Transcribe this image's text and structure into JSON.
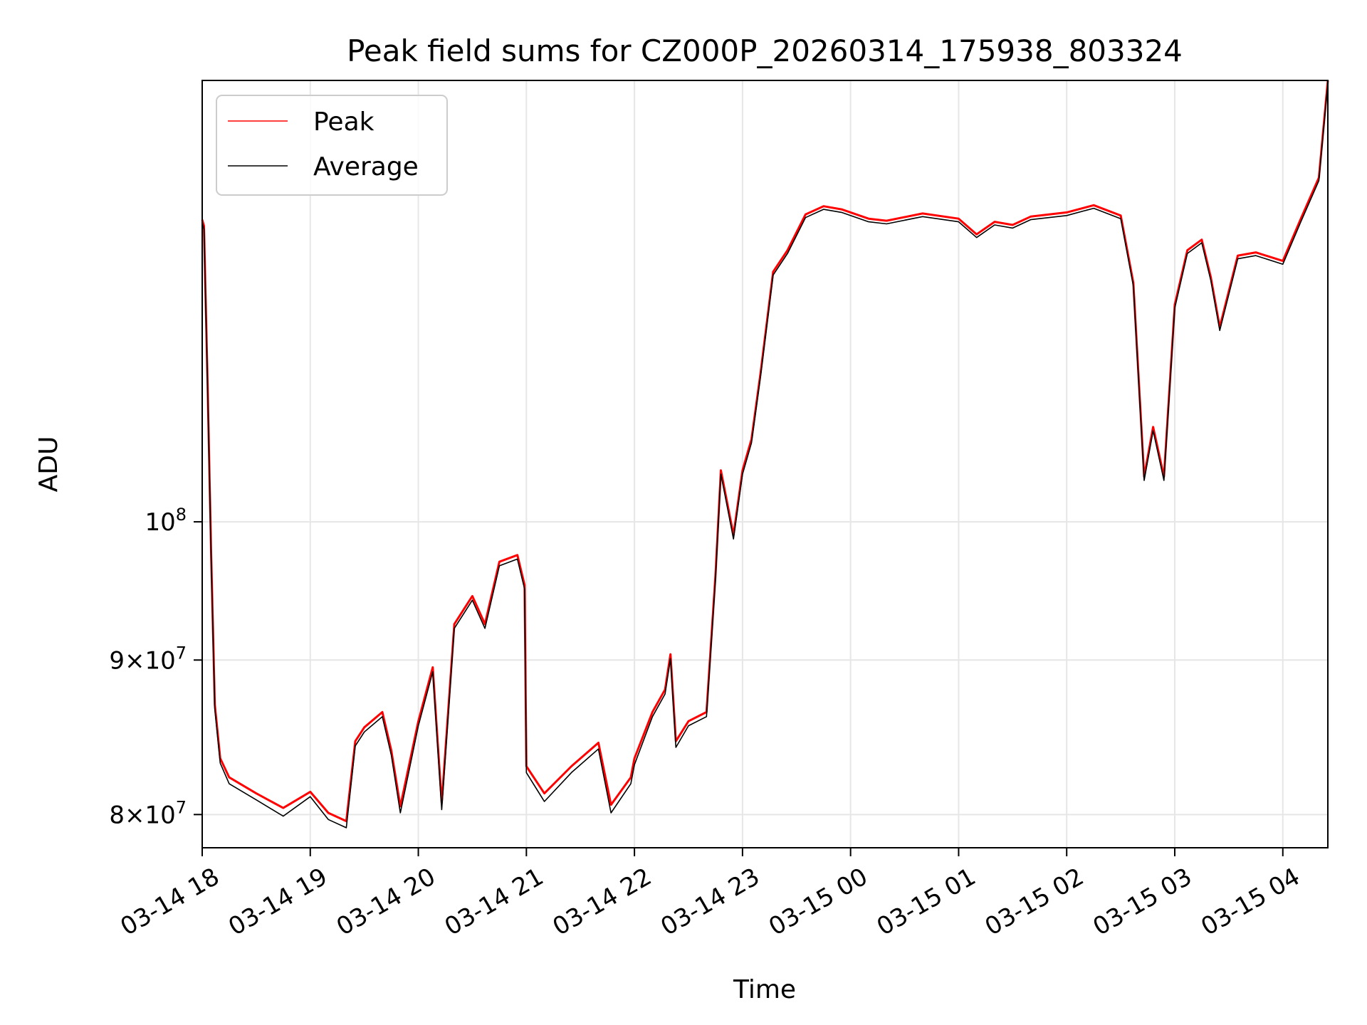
{
  "chart_data": {
    "type": "line",
    "title": "Peak field sums for CZ000P_20260314_175938_803324",
    "xlabel": "Time",
    "ylabel": "ADU",
    "yscale": "log",
    "xlim": [
      "2026-03-14T18:00",
      "2026-03-15T04:25"
    ],
    "ylim": [
      78000000,
      140000000
    ],
    "grid": true,
    "legend_position": "top-left",
    "x_ticks": [
      "03-14 18",
      "03-14 19",
      "03-14 20",
      "03-14 21",
      "03-14 22",
      "03-14 23",
      "03-15 00",
      "03-15 01",
      "03-15 02",
      "03-15 03",
      "03-15 04"
    ],
    "x_tick_times": [
      "2026-03-14T18:00",
      "2026-03-14T19:00",
      "2026-03-14T20:00",
      "2026-03-14T21:00",
      "2026-03-14T22:00",
      "2026-03-14T23:00",
      "2026-03-15T00:00",
      "2026-03-15T01:00",
      "2026-03-15T02:00",
      "2026-03-15T03:00",
      "2026-03-15T04:00"
    ],
    "y_ticks": [
      {
        "value": 80000000,
        "mantissa": "8",
        "base": "10",
        "exp": "7"
      },
      {
        "value": 90000000,
        "mantissa": "9",
        "base": "10",
        "exp": "7"
      },
      {
        "value": 100000000,
        "mantissa": "",
        "base": "10",
        "exp": "8"
      }
    ],
    "series": [
      {
        "name": "Peak",
        "color": "#ff0000",
        "x": [
          "2026-03-14T18:00",
          "2026-03-14T18:01",
          "2026-03-14T18:03",
          "2026-03-14T18:05",
          "2026-03-14T18:07",
          "2026-03-14T18:10",
          "2026-03-14T18:15",
          "2026-03-14T18:30",
          "2026-03-14T18:45",
          "2026-03-14T19:00",
          "2026-03-14T19:10",
          "2026-03-14T19:20",
          "2026-03-14T19:25",
          "2026-03-14T19:30",
          "2026-03-14T19:40",
          "2026-03-14T19:45",
          "2026-03-14T19:50",
          "2026-03-14T20:00",
          "2026-03-14T20:08",
          "2026-03-14T20:13",
          "2026-03-14T20:20",
          "2026-03-14T20:30",
          "2026-03-14T20:37",
          "2026-03-14T20:45",
          "2026-03-14T20:55",
          "2026-03-14T20:59",
          "2026-03-14T21:00",
          "2026-03-14T21:10",
          "2026-03-14T21:25",
          "2026-03-14T21:40",
          "2026-03-14T21:47",
          "2026-03-14T21:58",
          "2026-03-14T22:00",
          "2026-03-14T22:10",
          "2026-03-14T22:17",
          "2026-03-14T22:20",
          "2026-03-14T22:23",
          "2026-03-14T22:30",
          "2026-03-14T22:40",
          "2026-03-14T22:45",
          "2026-03-14T22:48",
          "2026-03-14T22:55",
          "2026-03-14T23:00",
          "2026-03-14T23:05",
          "2026-03-14T23:10",
          "2026-03-14T23:17",
          "2026-03-14T23:25",
          "2026-03-14T23:35",
          "2026-03-14T23:45",
          "2026-03-14T23:55",
          "2026-03-15T00:10",
          "2026-03-15T00:20",
          "2026-03-15T00:40",
          "2026-03-15T01:00",
          "2026-03-15T01:10",
          "2026-03-15T01:20",
          "2026-03-15T01:30",
          "2026-03-15T01:40",
          "2026-03-15T02:00",
          "2026-03-15T02:15",
          "2026-03-15T02:30",
          "2026-03-15T02:37",
          "2026-03-15T02:43",
          "2026-03-15T02:48",
          "2026-03-15T02:54",
          "2026-03-15T03:00",
          "2026-03-15T03:07",
          "2026-03-15T03:15",
          "2026-03-15T03:20",
          "2026-03-15T03:25",
          "2026-03-15T03:35",
          "2026-03-15T03:45",
          "2026-03-15T04:00",
          "2026-03-15T04:10",
          "2026-03-15T04:20",
          "2026-03-15T04:25"
        ],
        "values": [
          125900000,
          125300000,
          111000000,
          97500000,
          87000000,
          83500000,
          82300000,
          81300000,
          80400000,
          81400000,
          80100000,
          79600000,
          84600000,
          85500000,
          86500000,
          84000000,
          80500000,
          85900000,
          89500000,
          80700000,
          92500000,
          94500000,
          92500000,
          97000000,
          97500000,
          95300000,
          83000000,
          81300000,
          83000000,
          84500000,
          80600000,
          82300000,
          83500000,
          86500000,
          88000000,
          90400000,
          84600000,
          85900000,
          86500000,
          96000000,
          104000000,
          99000000,
          104000000,
          106500000,
          112000000,
          121000000,
          123000000,
          126400000,
          127200000,
          126900000,
          126000000,
          125800000,
          126500000,
          126000000,
          124500000,
          125700000,
          125400000,
          126200000,
          126600000,
          127300000,
          126300000,
          120000000,
          103500000,
          107500000,
          103500000,
          118000000,
          123000000,
          124000000,
          120500000,
          116000000,
          122500000,
          122800000,
          122000000,
          126000000,
          130000000,
          140000000
        ]
      },
      {
        "name": "Average",
        "color": "#000000",
        "x": [
          "2026-03-14T18:00",
          "2026-03-14T18:01",
          "2026-03-14T18:03",
          "2026-03-14T18:05",
          "2026-03-14T18:07",
          "2026-03-14T18:10",
          "2026-03-14T18:15",
          "2026-03-14T18:30",
          "2026-03-14T18:45",
          "2026-03-14T19:00",
          "2026-03-14T19:10",
          "2026-03-14T19:20",
          "2026-03-14T19:25",
          "2026-03-14T19:30",
          "2026-03-14T19:40",
          "2026-03-14T19:45",
          "2026-03-14T19:50",
          "2026-03-14T20:00",
          "2026-03-14T20:08",
          "2026-03-14T20:13",
          "2026-03-14T20:20",
          "2026-03-14T20:30",
          "2026-03-14T20:37",
          "2026-03-14T20:45",
          "2026-03-14T20:55",
          "2026-03-14T20:59",
          "2026-03-14T21:00",
          "2026-03-14T21:10",
          "2026-03-14T21:25",
          "2026-03-14T21:40",
          "2026-03-14T21:47",
          "2026-03-14T21:58",
          "2026-03-14T22:00",
          "2026-03-14T22:10",
          "2026-03-14T22:17",
          "2026-03-14T22:20",
          "2026-03-14T22:23",
          "2026-03-14T22:30",
          "2026-03-14T22:40",
          "2026-03-14T22:45",
          "2026-03-14T22:48",
          "2026-03-14T22:55",
          "2026-03-14T23:00",
          "2026-03-14T23:05",
          "2026-03-14T23:10",
          "2026-03-14T23:17",
          "2026-03-14T23:25",
          "2026-03-14T23:35",
          "2026-03-14T23:45",
          "2026-03-14T23:55",
          "2026-03-15T00:10",
          "2026-03-15T00:20",
          "2026-03-15T00:40",
          "2026-03-15T01:00",
          "2026-03-15T01:10",
          "2026-03-15T01:20",
          "2026-03-15T01:30",
          "2026-03-15T01:40",
          "2026-03-15T02:00",
          "2026-03-15T02:15",
          "2026-03-15T02:30",
          "2026-03-15T02:37",
          "2026-03-15T02:43",
          "2026-03-15T02:48",
          "2026-03-15T02:54",
          "2026-03-15T03:00",
          "2026-03-15T03:07",
          "2026-03-15T03:15",
          "2026-03-15T03:20",
          "2026-03-15T03:25",
          "2026-03-15T03:35",
          "2026-03-15T03:45",
          "2026-03-15T04:00",
          "2026-03-15T04:10",
          "2026-03-15T04:20",
          "2026-03-15T04:25"
        ],
        "values": [
          125600000,
          125000000,
          110700000,
          97200000,
          86700000,
          83200000,
          81900000,
          80900000,
          79900000,
          81100000,
          79700000,
          79200000,
          84300000,
          85200000,
          86200000,
          83700000,
          80100000,
          85600000,
          89200000,
          80300000,
          92200000,
          94200000,
          92200000,
          96700000,
          97200000,
          95000000,
          82600000,
          80800000,
          82600000,
          84100000,
          80100000,
          81900000,
          83100000,
          86200000,
          87700000,
          90100000,
          84200000,
          85600000,
          86200000,
          95700000,
          103700000,
          98700000,
          103700000,
          106200000,
          111700000,
          120700000,
          122700000,
          126100000,
          126900000,
          126600000,
          125700000,
          125500000,
          126200000,
          125700000,
          124200000,
          125400000,
          125100000,
          125900000,
          126300000,
          127000000,
          126000000,
          119700000,
          103200000,
          107200000,
          103200000,
          117700000,
          122700000,
          123700000,
          120200000,
          115700000,
          122200000,
          122500000,
          121700000,
          125700000,
          129700000,
          139700000
        ]
      }
    ]
  }
}
